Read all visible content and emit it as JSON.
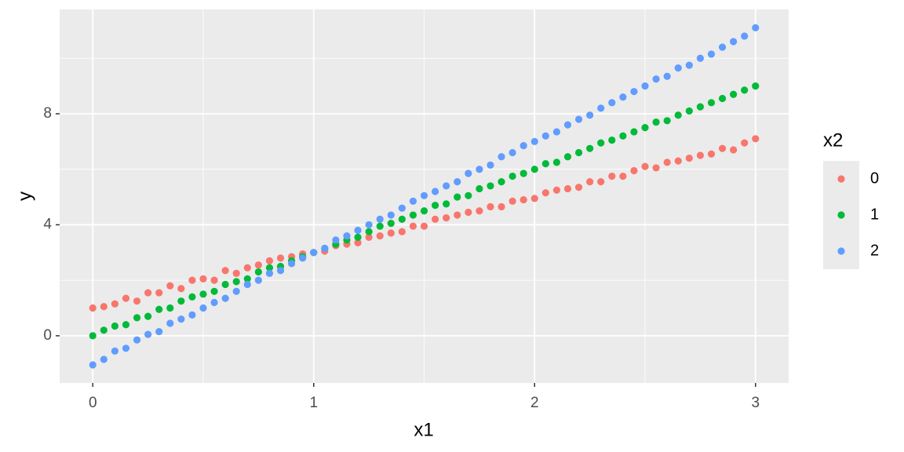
{
  "chart_data": {
    "type": "scatter",
    "xlabel": "x1",
    "ylabel": "y",
    "legend_title": "x2",
    "legend": "right",
    "grid": true,
    "xlim": [
      -0.15,
      3.15
    ],
    "ylim": [
      -1.7,
      11.76
    ],
    "xticks": [
      0,
      1,
      2,
      3
    ],
    "yticks": [
      0,
      4,
      8
    ],
    "xminor": [
      0.5,
      1.5,
      2.5
    ],
    "yminor": [
      2,
      6,
      10
    ],
    "x": [
      0,
      0.05,
      0.1,
      0.15,
      0.2,
      0.25,
      0.3,
      0.35,
      0.4,
      0.45,
      0.5,
      0.55,
      0.6,
      0.65,
      0.7,
      0.75,
      0.8,
      0.85,
      0.9,
      0.95,
      1,
      1.05,
      1.1,
      1.15,
      1.2,
      1.25,
      1.3,
      1.35,
      1.4,
      1.45,
      1.5,
      1.55,
      1.6,
      1.65,
      1.7,
      1.75,
      1.8,
      1.85,
      1.9,
      1.95,
      2,
      2.05,
      2.1,
      2.15,
      2.2,
      2.25,
      2.3,
      2.35,
      2.4,
      2.45,
      2.5,
      2.55,
      2.6,
      2.65,
      2.7,
      2.75,
      2.8,
      2.85,
      2.9,
      2.95,
      3
    ],
    "series": [
      {
        "name": "0",
        "color": "#f8766d",
        "values": [
          1.0,
          1.05,
          1.15,
          1.35,
          1.25,
          1.55,
          1.55,
          1.8,
          1.7,
          2.0,
          2.05,
          2.0,
          2.35,
          2.25,
          2.45,
          2.55,
          2.7,
          2.8,
          2.85,
          2.95,
          3.0,
          3.05,
          3.25,
          3.3,
          3.35,
          3.55,
          3.6,
          3.7,
          3.75,
          3.95,
          3.95,
          4.2,
          4.25,
          4.35,
          4.45,
          4.5,
          4.65,
          4.65,
          4.85,
          4.9,
          4.95,
          5.15,
          5.25,
          5.3,
          5.35,
          5.55,
          5.55,
          5.75,
          5.75,
          5.95,
          6.1,
          6.05,
          6.25,
          6.3,
          6.4,
          6.5,
          6.55,
          6.75,
          6.7,
          6.95,
          7.1
        ]
      },
      {
        "name": "1",
        "color": "#00ba38",
        "values": [
          0,
          0.2,
          0.35,
          0.4,
          0.65,
          0.7,
          0.95,
          1.0,
          1.25,
          1.4,
          1.5,
          1.6,
          1.85,
          1.95,
          2.05,
          2.3,
          2.45,
          2.5,
          2.7,
          2.85,
          3.0,
          3.15,
          3.3,
          3.45,
          3.55,
          3.75,
          3.95,
          4.05,
          4.2,
          4.35,
          4.5,
          4.7,
          4.75,
          5.0,
          5.05,
          5.3,
          5.4,
          5.55,
          5.75,
          5.85,
          6.0,
          6.2,
          6.25,
          6.45,
          6.6,
          6.75,
          6.95,
          7.05,
          7.2,
          7.35,
          7.5,
          7.7,
          7.75,
          7.95,
          8.1,
          8.25,
          8.4,
          8.55,
          8.7,
          8.85,
          9.0
        ]
      },
      {
        "name": "2",
        "color": "#619cff",
        "values": [
          -1.05,
          -0.85,
          -0.55,
          -0.45,
          -0.15,
          0.05,
          0.15,
          0.45,
          0.6,
          0.75,
          1.0,
          1.2,
          1.35,
          1.6,
          1.85,
          2.0,
          2.25,
          2.35,
          2.6,
          2.8,
          3.0,
          3.15,
          3.45,
          3.6,
          3.8,
          4.0,
          4.2,
          4.35,
          4.6,
          4.85,
          5.05,
          5.2,
          5.4,
          5.55,
          5.85,
          6.0,
          6.15,
          6.45,
          6.6,
          6.85,
          7.0,
          7.2,
          7.35,
          7.6,
          7.8,
          7.95,
          8.2,
          8.4,
          8.6,
          8.8,
          9.0,
          9.25,
          9.35,
          9.65,
          9.75,
          10.0,
          10.15,
          10.4,
          10.6,
          10.8,
          11.1
        ]
      }
    ]
  }
}
